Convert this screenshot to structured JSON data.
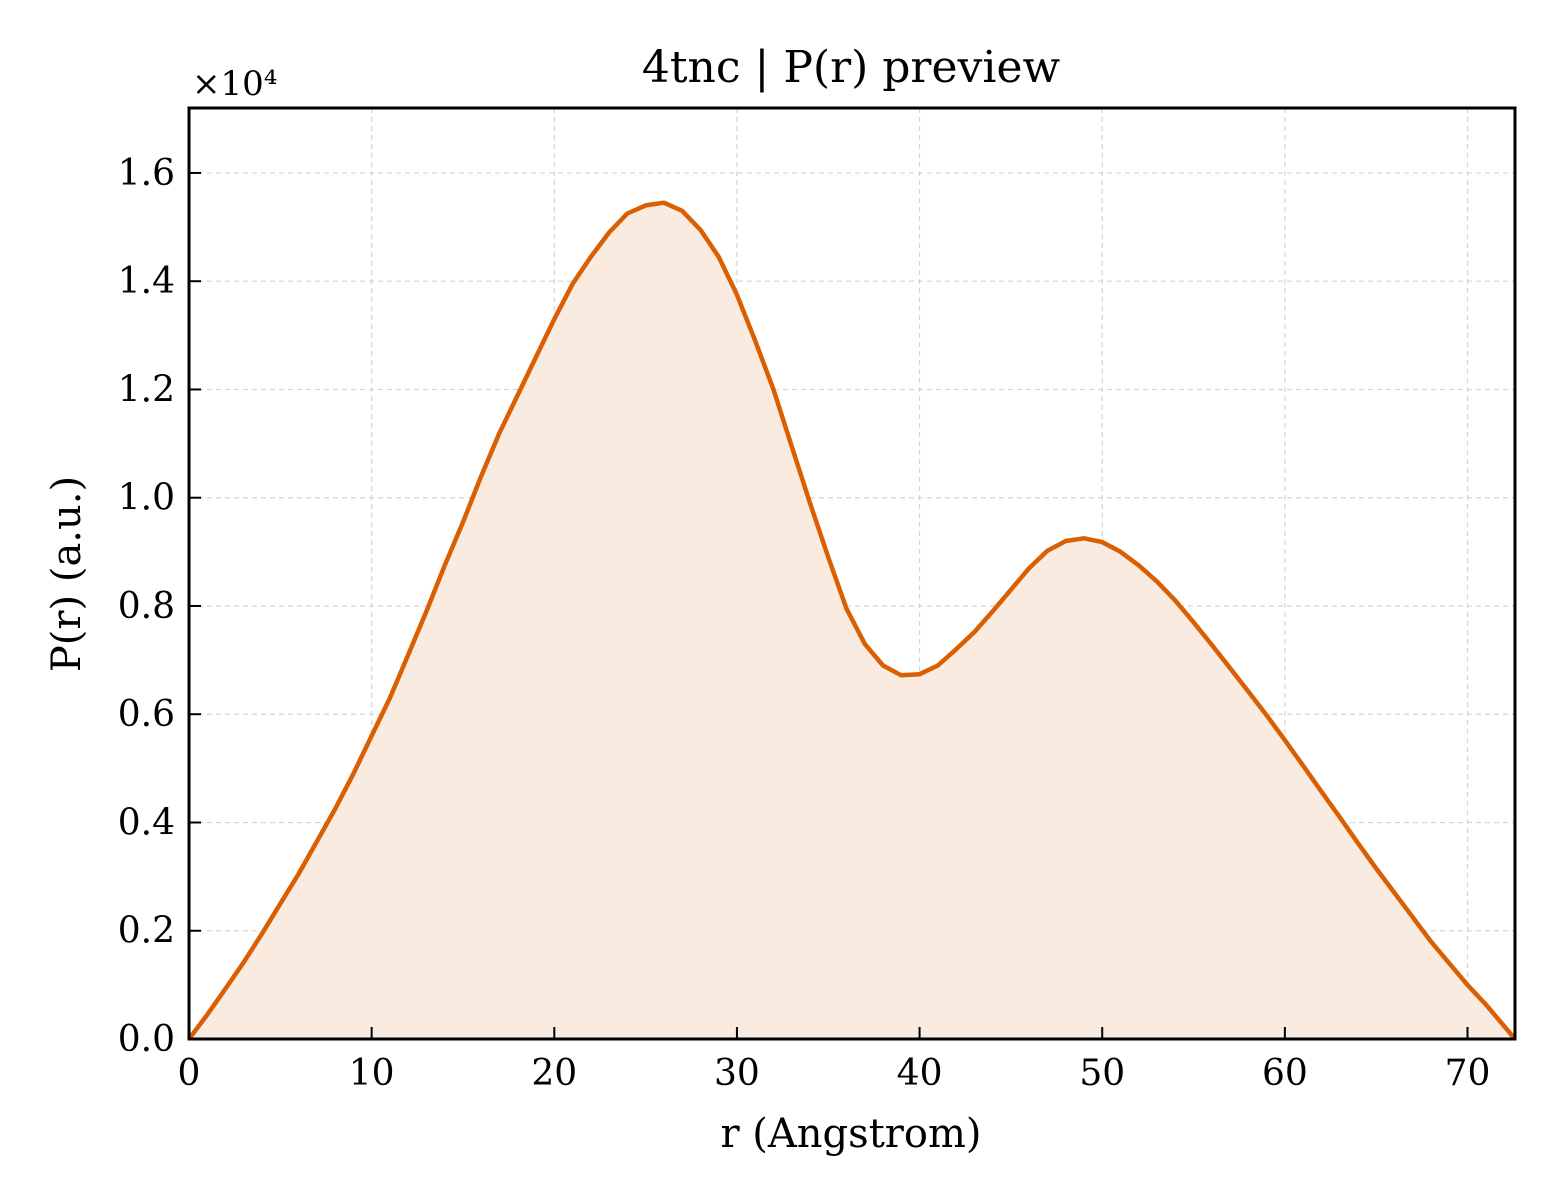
{
  "chart_data": {
    "type": "area",
    "title": "4tnc | P(r) preview",
    "xlabel": "r (Angstrom)",
    "ylabel": "P(r) (a.u.)",
    "y_offset_label": "×10⁴",
    "xlim": [
      0,
      72.6
    ],
    "ylim": [
      0,
      1.72
    ],
    "xticks": [
      0,
      10,
      20,
      30,
      40,
      50,
      60,
      70
    ],
    "yticks": [
      0.0,
      0.2,
      0.4,
      0.6,
      0.8,
      1.0,
      1.2,
      1.4,
      1.6
    ],
    "xtick_labels": [
      "0",
      "10",
      "20",
      "30",
      "40",
      "50",
      "60",
      "70"
    ],
    "ytick_labels": [
      "0.0",
      "0.2",
      "0.4",
      "0.6",
      "0.8",
      "1.0",
      "1.2",
      "1.4",
      "1.6"
    ],
    "grid": true,
    "line_color": "#d95f02",
    "fill_color": "#f9ebe0",
    "series": [
      {
        "x": [
          0.0,
          1.0,
          2.0,
          3.0,
          4.0,
          5.0,
          6.0,
          7.0,
          8.0,
          9.0,
          10.0,
          11.0,
          12.0,
          13.0,
          14.0,
          15.0,
          16.0,
          17.0,
          18.0,
          19.0,
          20.0,
          21.0,
          22.0,
          23.0,
          24.0,
          25.0,
          26.0,
          27.0,
          28.0,
          29.0,
          30.0,
          31.0,
          32.0,
          33.0,
          34.0,
          35.0,
          36.0,
          37.0,
          38.0,
          39.0,
          40.0,
          41.0,
          42.0,
          43.0,
          44.0,
          45.0,
          46.0,
          47.0,
          48.0,
          49.0,
          50.0,
          51.0,
          52.0,
          53.0,
          54.0,
          55.0,
          56.0,
          57.0,
          58.0,
          59.0,
          60.0,
          61.0,
          62.0,
          63.0,
          64.0,
          65.0,
          66.0,
          67.0,
          68.0,
          69.0,
          70.0,
          71.0,
          72.6
        ],
        "y": [
          0.0,
          0.045,
          0.093,
          0.142,
          0.195,
          0.25,
          0.305,
          0.365,
          0.425,
          0.49,
          0.56,
          0.63,
          0.71,
          0.79,
          0.875,
          0.955,
          1.04,
          1.12,
          1.19,
          1.26,
          1.33,
          1.395,
          1.445,
          1.49,
          1.525,
          1.54,
          1.545,
          1.53,
          1.495,
          1.445,
          1.375,
          1.29,
          1.2,
          1.095,
          0.99,
          0.89,
          0.795,
          0.73,
          0.69,
          0.672,
          0.674,
          0.69,
          0.72,
          0.752,
          0.79,
          0.83,
          0.87,
          0.902,
          0.92,
          0.925,
          0.918,
          0.9,
          0.875,
          0.845,
          0.81,
          0.77,
          0.728,
          0.685,
          0.642,
          0.598,
          0.552,
          0.505,
          0.457,
          0.41,
          0.362,
          0.315,
          0.27,
          0.225,
          0.18,
          0.14,
          0.1,
          0.064,
          0.0
        ]
      }
    ]
  }
}
